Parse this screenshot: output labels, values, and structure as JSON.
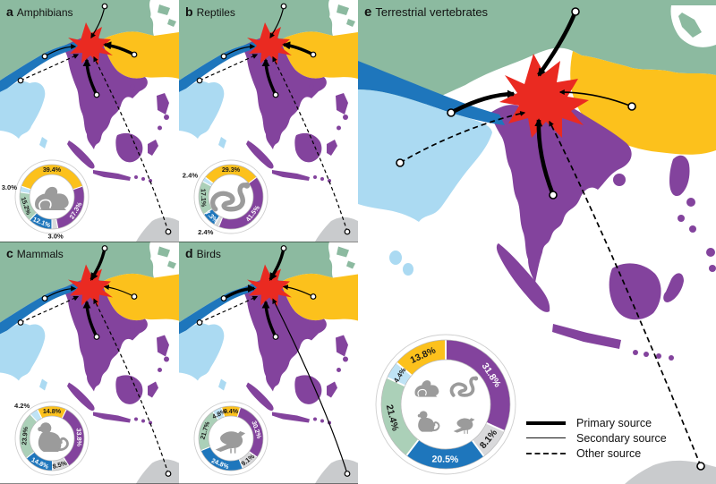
{
  "figure": {
    "panels": [
      {
        "key": "a",
        "tag": "a",
        "title": "Amphibians"
      },
      {
        "key": "b",
        "tag": "b",
        "title": "Reptiles"
      },
      {
        "key": "c",
        "tag": "c",
        "title": "Mammals"
      },
      {
        "key": "d",
        "tag": "d",
        "title": "Birds"
      },
      {
        "key": "e",
        "tag": "e",
        "title": "Terrestrial vertebrates"
      }
    ],
    "legend": {
      "primary": "Primary source",
      "secondary": "Secondary source",
      "other": "Other source"
    }
  },
  "colors": {
    "sea": "#ffffff",
    "green": "#8cbaa0",
    "yellow": "#fcc11c",
    "blue": "#1e76bc",
    "light_blue": "#abdaf2",
    "purple": "#83439d",
    "red": "#ea2a21",
    "gray_land": "#c9cbcd",
    "donut_green": "#abd0b8",
    "donut_light_blue": "#bfe3f5",
    "donut_other": "#d9d9db",
    "icon": "#9b9b9b",
    "label_dark": "#1a1a1a",
    "label_light": "#ffffff"
  },
  "chart_data": [
    {
      "type": "pie",
      "panel": "a",
      "title": "Amphibians",
      "icon": "frog",
      "start_angle": -70.92,
      "segments": [
        {
          "region": "yellow",
          "value": 39.4,
          "label": "39.4%"
        },
        {
          "region": "purple",
          "value": 27.3,
          "label": "27.3%"
        },
        {
          "region": "other",
          "value": 3.0,
          "label": "3.0%",
          "label_outside": true
        },
        {
          "region": "blue",
          "value": 12.1,
          "label": "12.1%"
        },
        {
          "region": "green",
          "value": 15.2,
          "label": "15.2%"
        },
        {
          "region": "light_blue",
          "value": 3.0,
          "label": "3.0%",
          "label_outside": true
        }
      ]
    },
    {
      "type": "pie",
      "panel": "b",
      "title": "Reptiles",
      "icon": "snake",
      "start_angle": -52.74,
      "segments": [
        {
          "region": "yellow",
          "value": 29.3,
          "label": "29.3%"
        },
        {
          "region": "purple",
          "value": 41.5,
          "label": "41.5%"
        },
        {
          "region": "other",
          "value": 2.4,
          "label": "2.4%",
          "label_outside": true
        },
        {
          "region": "blue",
          "value": 7.3,
          "label": "7.3%"
        },
        {
          "region": "green",
          "value": 17.1,
          "label": "17.1%"
        },
        {
          "region": "light_blue",
          "value": 2.4,
          "label": "2.4%",
          "label_outside": true
        }
      ]
    },
    {
      "type": "pie",
      "panel": "c",
      "title": "Mammals",
      "icon": "monkey",
      "start_angle": -26.64,
      "segments": [
        {
          "region": "yellow",
          "value": 14.8,
          "label": "14.8%"
        },
        {
          "region": "purple",
          "value": 33.8,
          "label": "33.8%"
        },
        {
          "region": "other",
          "value": 8.5,
          "label": "8.5%"
        },
        {
          "region": "blue",
          "value": 14.8,
          "label": "14.8%"
        },
        {
          "region": "green",
          "value": 23.9,
          "label": "23.9%"
        },
        {
          "region": "light_blue",
          "value": 4.2,
          "label": "4.2%",
          "label_outside": true
        }
      ]
    },
    {
      "type": "pie",
      "panel": "d",
      "title": "Birds",
      "icon": "bird",
      "start_angle": -16.92,
      "segments": [
        {
          "region": "yellow",
          "value": 9.4,
          "label": "9.4%"
        },
        {
          "region": "purple",
          "value": 30.2,
          "label": "30.2%"
        },
        {
          "region": "other",
          "value": 9.1,
          "label": "9.1%"
        },
        {
          "region": "blue",
          "value": 24.8,
          "label": "24.8%"
        },
        {
          "region": "green",
          "value": 21.7,
          "label": "21.7%"
        },
        {
          "region": "light_blue",
          "value": 4.8,
          "label": "4.8%"
        }
      ]
    },
    {
      "type": "pie",
      "panel": "e",
      "title": "Terrestrial vertebrates",
      "icon": "all",
      "start_angle": 0,
      "segments": [
        {
          "region": "purple",
          "value": 31.8,
          "label": "31.8%"
        },
        {
          "region": "other",
          "value": 8.1,
          "label": "8.1%"
        },
        {
          "region": "blue",
          "value": 20.5,
          "label": "20.5%"
        },
        {
          "region": "green",
          "value": 21.4,
          "label": "21.4%"
        },
        {
          "region": "light_blue",
          "value": 4.4,
          "label": "4.4%"
        },
        {
          "region": "yellow",
          "value": 13.8,
          "label": "13.8%"
        }
      ]
    }
  ],
  "arrows": {
    "a": [
      {
        "from": "north",
        "type": "secondary"
      },
      {
        "from": "east",
        "type": "primary"
      },
      {
        "from": "south",
        "type": "primary"
      },
      {
        "from": "west",
        "type": "secondary"
      },
      {
        "from": "southwest",
        "type": "other"
      },
      {
        "from": "southeast",
        "type": "other"
      }
    ],
    "b": [
      {
        "from": "north",
        "type": "secondary"
      },
      {
        "from": "east",
        "type": "primary"
      },
      {
        "from": "south",
        "type": "primary"
      },
      {
        "from": "west",
        "type": "secondary"
      },
      {
        "from": "southwest",
        "type": "other"
      },
      {
        "from": "southeast",
        "type": "other"
      }
    ],
    "c": [
      {
        "from": "north",
        "type": "primary"
      },
      {
        "from": "east",
        "type": "secondary"
      },
      {
        "from": "south",
        "type": "primary"
      },
      {
        "from": "west",
        "type": "secondary"
      },
      {
        "from": "southwest",
        "type": "other"
      },
      {
        "from": "southeast",
        "type": "other"
      }
    ],
    "d": [
      {
        "from": "north",
        "type": "primary"
      },
      {
        "from": "east",
        "type": "secondary"
      },
      {
        "from": "south",
        "type": "primary"
      },
      {
        "from": "west",
        "type": "primary"
      },
      {
        "from": "southwest",
        "type": "other"
      },
      {
        "from": "southeast",
        "type": "secondary"
      }
    ],
    "e": [
      {
        "from": "north",
        "type": "primary"
      },
      {
        "from": "east",
        "type": "secondary"
      },
      {
        "from": "south",
        "type": "primary"
      },
      {
        "from": "west",
        "type": "primary"
      },
      {
        "from": "southwest",
        "type": "other"
      },
      {
        "from": "southeast",
        "type": "other"
      }
    ]
  }
}
